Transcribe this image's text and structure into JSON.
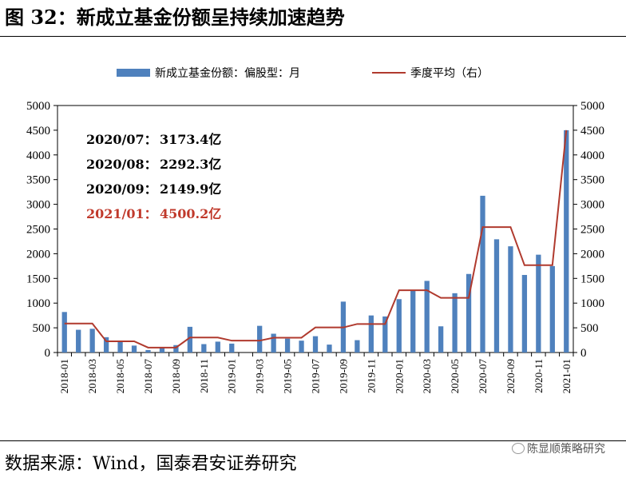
{
  "header": {
    "title": "图 32：新成立基金份额呈持续加速趋势"
  },
  "footer": {
    "source": "数据来源：Wind，国泰君安证券研究",
    "watermark": "陈显顺策略研究"
  },
  "annotations": [
    {
      "label": "2020/07：",
      "value": "3173.4亿",
      "color": "#000000"
    },
    {
      "label": "2020/08：",
      "value": "2292.3亿",
      "color": "#000000"
    },
    {
      "label": "2020/09：",
      "value": "2149.9亿",
      "color": "#000000"
    },
    {
      "label": "2021/01：",
      "value": "4500.2亿",
      "color": "#C0392B"
    }
  ],
  "colors": {
    "bar": "#4F81BD",
    "line": "#B03A2E"
  },
  "chart_data": {
    "type": "bar",
    "title": "",
    "xlabel": "",
    "ylabel": "",
    "ylim": [
      0,
      5000
    ],
    "y2lim": [
      0,
      5000
    ],
    "yticks": [
      0,
      500,
      1000,
      1500,
      2000,
      2500,
      3000,
      3500,
      4000,
      4500,
      5000
    ],
    "grid": false,
    "legend_position": "top",
    "categories": [
      "2018-01",
      "2018-02",
      "2018-03",
      "2018-04",
      "2018-05",
      "2018-06",
      "2018-07",
      "2018-08",
      "2018-09",
      "2018-10",
      "2018-11",
      "2018-12",
      "2019-01",
      "2019-02",
      "2019-03",
      "2019-04",
      "2019-05",
      "2019-06",
      "2019-07",
      "2019-08",
      "2019-09",
      "2019-10",
      "2019-11",
      "2019-12",
      "2020-01",
      "2020-02",
      "2020-03",
      "2020-04",
      "2020-05",
      "2020-06",
      "2020-07",
      "2020-08",
      "2020-09",
      "2020-10",
      "2020-11",
      "2020-12",
      "2021-01"
    ],
    "xtick_labels": [
      "2018-01",
      "2018-03",
      "2018-05",
      "2018-07",
      "2018-09",
      "2018-11",
      "2019-01",
      "2019-03",
      "2019-05",
      "2019-07",
      "2019-09",
      "2019-11",
      "2020-01",
      "2020-03",
      "2020-05",
      "2020-07",
      "2020-09",
      "2020-11",
      "2021-01"
    ],
    "series": [
      {
        "name": "新成立基金份额：偏股型：月",
        "axis": "left",
        "type": "bar",
        "values": [
          820,
          460,
          480,
          310,
          230,
          140,
          50,
          100,
          150,
          520,
          170,
          220,
          180,
          0,
          540,
          380,
          280,
          240,
          330,
          160,
          1030,
          250,
          750,
          730,
          1080,
          1250,
          1450,
          530,
          1200,
          1590,
          3173,
          2292,
          2150,
          1570,
          1980,
          1750,
          4500
        ]
      },
      {
        "name": "季度平均（右）",
        "axis": "right",
        "type": "line",
        "values": [
          587,
          587,
          587,
          227,
          227,
          227,
          100,
          100,
          100,
          303,
          303,
          303,
          240,
          240,
          240,
          300,
          300,
          300,
          507,
          507,
          507,
          577,
          577,
          577,
          1260,
          1260,
          1260,
          1107,
          1107,
          1107,
          2539,
          2539,
          2539,
          1767,
          1767,
          1767,
          4500
        ]
      }
    ]
  }
}
